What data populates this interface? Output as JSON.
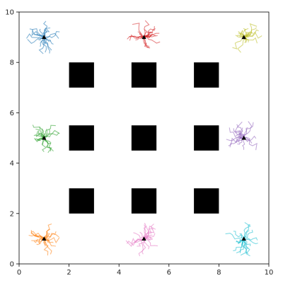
{
  "chart_data": {
    "type": "scatter",
    "xlim": [
      0,
      10
    ],
    "ylim": [
      0,
      10
    ],
    "xticks": [
      "0",
      "2",
      "4",
      "6",
      "8",
      "10"
    ],
    "yticks": [
      "0",
      "2",
      "4",
      "6",
      "8",
      "10"
    ],
    "grid": false,
    "obstacles": [
      {
        "x0": 2.0,
        "x1": 3.0,
        "y0": 7.0,
        "y1": 8.0
      },
      {
        "x0": 4.5,
        "x1": 5.5,
        "y0": 7.0,
        "y1": 8.0
      },
      {
        "x0": 7.0,
        "x1": 8.0,
        "y0": 7.0,
        "y1": 8.0
      },
      {
        "x0": 2.0,
        "x1": 3.0,
        "y0": 4.5,
        "y1": 5.5
      },
      {
        "x0": 4.5,
        "x1": 5.5,
        "y0": 4.5,
        "y1": 5.5
      },
      {
        "x0": 7.0,
        "x1": 8.0,
        "y0": 4.5,
        "y1": 5.5
      },
      {
        "x0": 2.0,
        "x1": 3.0,
        "y0": 2.0,
        "y1": 3.0
      },
      {
        "x0": 4.5,
        "x1": 5.5,
        "y0": 2.0,
        "y1": 3.0
      },
      {
        "x0": 7.0,
        "x1": 8.0,
        "y0": 2.0,
        "y1": 3.0
      }
    ],
    "agents": [
      {
        "x": 1.0,
        "y": 9.0,
        "color": "#1f77b4"
      },
      {
        "x": 5.0,
        "y": 9.0,
        "color": "#d62728"
      },
      {
        "x": 9.0,
        "y": 9.0,
        "color": "#bcbd22"
      },
      {
        "x": 1.0,
        "y": 5.0,
        "color": "#2ca02c"
      },
      {
        "x": 9.0,
        "y": 5.0,
        "color": "#9467bd"
      },
      {
        "x": 1.0,
        "y": 1.0,
        "color": "#ff7f0e"
      },
      {
        "x": 5.0,
        "y": 1.0,
        "color": "#e377c2"
      },
      {
        "x": 9.0,
        "y": 1.0,
        "color": "#17becf"
      }
    ],
    "goal_marker_color": "#000000"
  }
}
